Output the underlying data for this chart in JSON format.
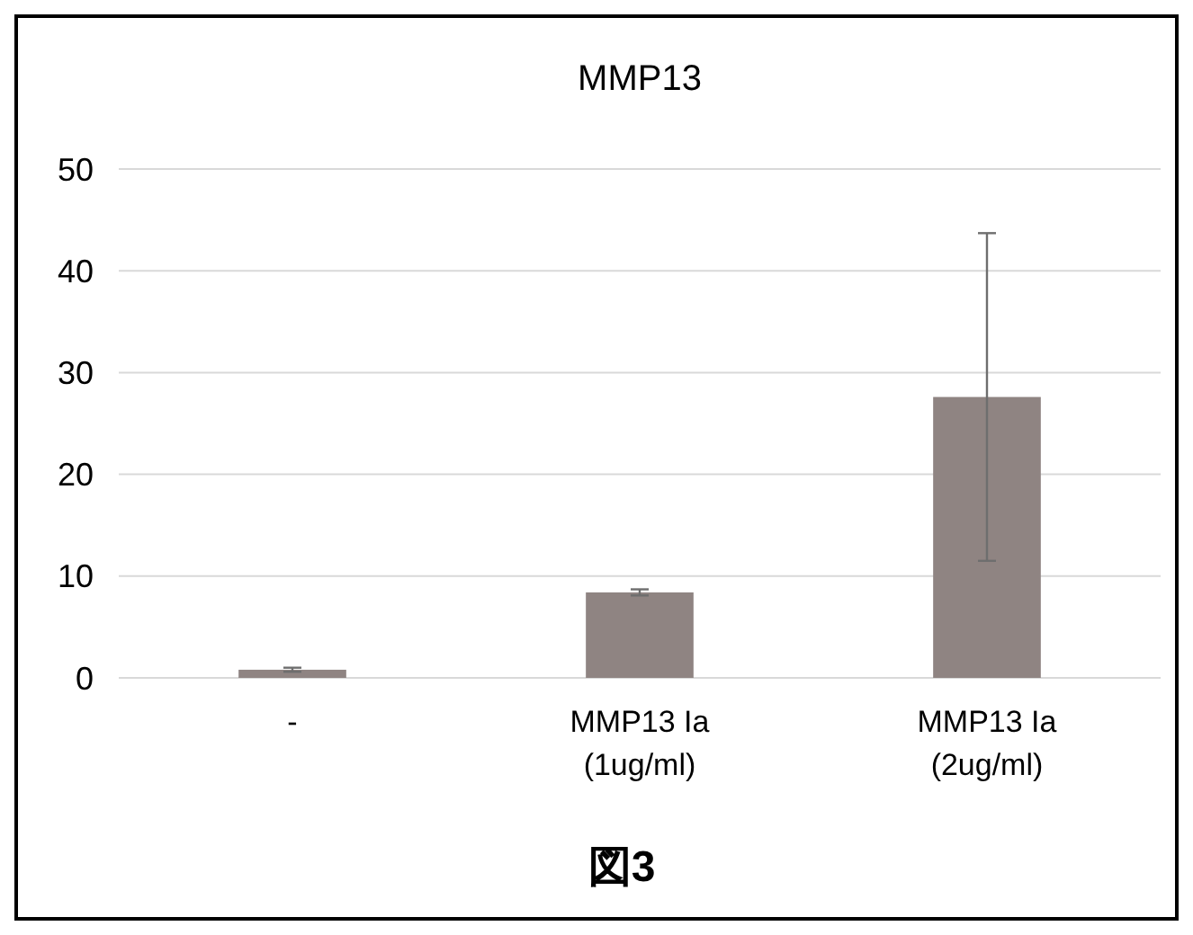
{
  "chart_data": {
    "type": "bar",
    "title": "MMP13",
    "categories": [
      "-",
      "MMP13 Ia\n(1ug/ml)",
      "MMP13 Ia\n(2ug/ml)"
    ],
    "values": [
      0.8,
      8.4,
      27.6
    ],
    "errors": [
      0.2,
      0.3,
      16.1
    ],
    "color": "#8f8482",
    "ylim": [
      0,
      50
    ],
    "yticks": [
      0,
      10,
      20,
      30,
      40,
      50
    ],
    "grid": "y",
    "annotations": [
      "図3"
    ]
  }
}
